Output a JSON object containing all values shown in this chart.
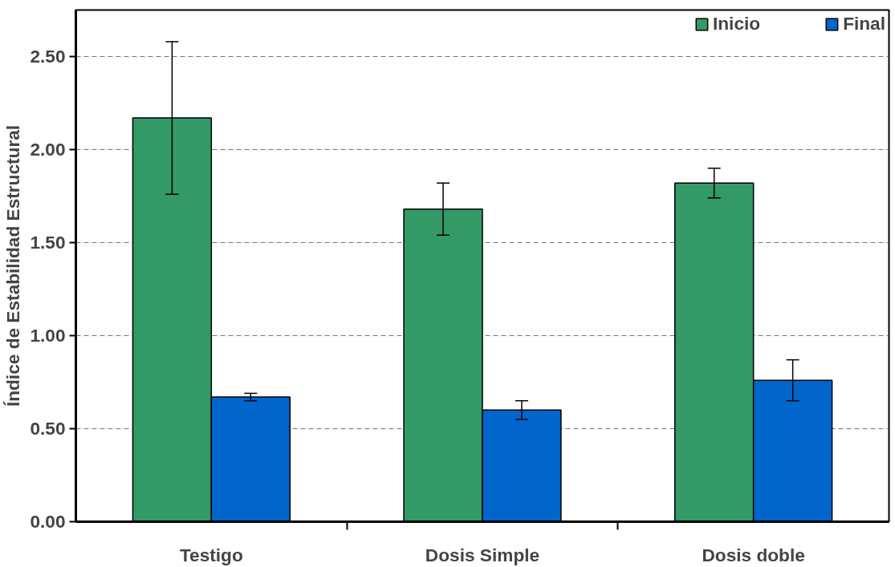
{
  "chart_data": {
    "type": "bar",
    "ylabel": "Índice de Estabilidad Estructural",
    "categories": [
      "Testigo",
      "Dosis Simple",
      "Dosis doble"
    ],
    "series": [
      {
        "name": "Inicio",
        "color": "#339966",
        "values": [
          2.17,
          1.68,
          1.82
        ],
        "errors": [
          0.41,
          0.14,
          0.08
        ]
      },
      {
        "name": "Final",
        "color": "#0066cc",
        "values": [
          0.67,
          0.6,
          0.76
        ],
        "errors": [
          0.02,
          0.05,
          0.11
        ]
      }
    ],
    "ylim": [
      0,
      2.75
    ],
    "yticks": [
      {
        "value": 0,
        "label": "0.00"
      },
      {
        "value": 0.5,
        "label": "0.50"
      },
      {
        "value": 1,
        "label": "1.00"
      },
      {
        "value": 1.5,
        "label": "1.50"
      },
      {
        "value": 2,
        "label": "2.00"
      },
      {
        "value": 2.5,
        "label": "2.50"
      }
    ],
    "grid": "y",
    "legend": "top right"
  }
}
